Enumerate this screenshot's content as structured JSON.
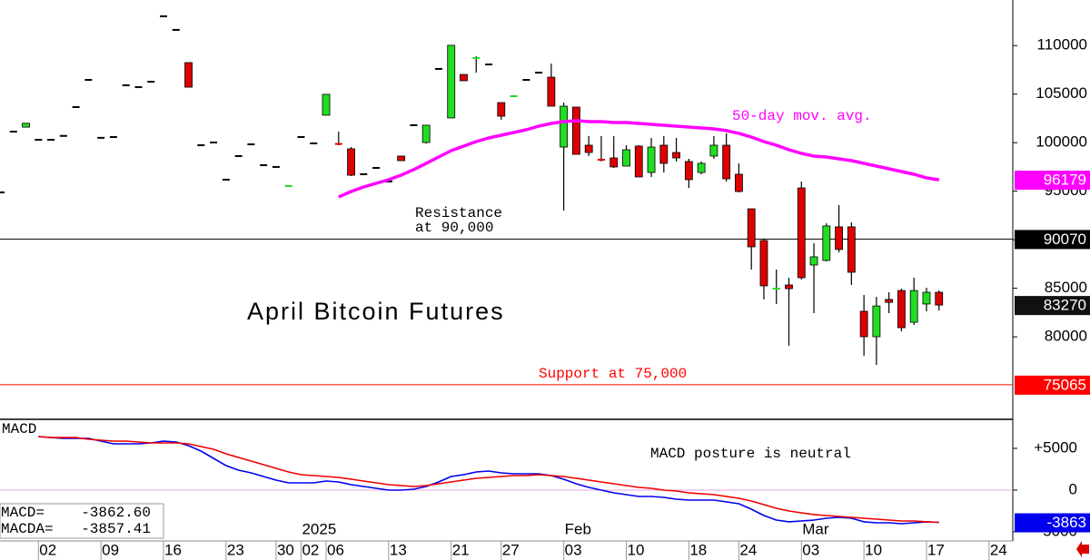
{
  "chart_data": [
    {
      "type": "candlestick",
      "title": "April Bitcoin Futures",
      "categories": [
        null,
        null,
        null,
        "02",
        null,
        null,
        null,
        null,
        "09",
        null,
        null,
        null,
        null,
        "16",
        null,
        null,
        null,
        null,
        "23",
        null,
        null,
        null,
        "30",
        null,
        "02",
        null,
        "06",
        null,
        null,
        null,
        null,
        "13",
        null,
        null,
        null,
        null,
        "21",
        null,
        null,
        null,
        "27",
        null,
        null,
        null,
        null,
        "03",
        null,
        null,
        null,
        null,
        "10",
        null,
        null,
        null,
        null,
        "18",
        null,
        null,
        null,
        "24",
        null,
        null,
        null,
        null,
        "03",
        null,
        null,
        null,
        null,
        "10",
        null,
        null,
        null,
        null,
        "17",
        null,
        null,
        null,
        null,
        "24"
      ],
      "month_labels": [
        null,
        null,
        null,
        null,
        null,
        null,
        null,
        null,
        null,
        null,
        null,
        null,
        null,
        null,
        null,
        null,
        null,
        null,
        null,
        null,
        null,
        null,
        null,
        null,
        "2025",
        null,
        null,
        null,
        null,
        null,
        null,
        null,
        null,
        null,
        null,
        null,
        null,
        null,
        null,
        null,
        null,
        null,
        null,
        null,
        null,
        "Feb",
        null,
        null,
        null,
        null,
        null,
        null,
        null,
        null,
        null,
        null,
        null,
        null,
        null,
        null,
        null,
        null,
        null,
        null,
        "Mar",
        null,
        null,
        null,
        null,
        null,
        null,
        null,
        null,
        null,
        null,
        null,
        null,
        null,
        null,
        null
      ],
      "open": [
        94880,
        101140,
        101600,
        100300,
        100300,
        100700,
        103670,
        106470,
        100500,
        100580,
        105910,
        105720,
        106280,
        113020,
        111620,
        108250,
        99740,
        100020,
        96190,
        98620,
        99830,
        97680,
        97500,
        95480,
        100580,
        99930,
        102830,
        99870,
        99370,
        96750,
        97400,
        96000,
        98620,
        101800,
        100020,
        107600,
        102550,
        107030,
        108680,
        108060,
        104130,
        104750,
        106470,
        107220,
        106750,
        99550,
        103670,
        99740,
        98340,
        98430,
        97590,
        99650,
        96930,
        99740,
        98990,
        98060,
        96930,
        98620,
        99740,
        96750,
        93190,
        89920,
        84920,
        85340,
        95340,
        87400,
        87870,
        91330,
        91330,
        82630,
        80010,
        83850,
        84770,
        81500,
        83380,
        84590,
        null,
        null,
        null,
        null
      ],
      "high": [
        94880,
        101140,
        102000,
        100300,
        100300,
        100700,
        103670,
        106470,
        100500,
        100580,
        105910,
        105720,
        106280,
        113020,
        111620,
        108250,
        99740,
        100020,
        96190,
        98620,
        99830,
        97680,
        97500,
        95530,
        100580,
        99930,
        104980,
        101140,
        99550,
        96750,
        97400,
        96000,
        98620,
        101800,
        101800,
        107600,
        110030,
        107030,
        108900,
        108060,
        104130,
        104790,
        106470,
        107220,
        108150,
        104130,
        103670,
        100680,
        100680,
        100680,
        99740,
        99740,
        100490,
        100680,
        100490,
        98340,
        98060,
        100680,
        100960,
        97870,
        93190,
        90110,
        86930,
        86090,
        96000,
        89640,
        91700,
        93570,
        91790,
        84310,
        84120,
        84590,
        84960,
        86090,
        85060,
        84770,
        null,
        null,
        null,
        null
      ],
      "low": [
        94880,
        101140,
        101600,
        100300,
        100300,
        100700,
        103670,
        106470,
        100500,
        100580,
        105910,
        105720,
        106280,
        113020,
        111620,
        105720,
        99740,
        100020,
        96190,
        98620,
        99830,
        97680,
        97500,
        95480,
        100580,
        99930,
        102830,
        99740,
        96560,
        96750,
        97400,
        96000,
        98150,
        101800,
        99900,
        107600,
        102550,
        106380,
        107220,
        108060,
        102360,
        104750,
        106470,
        107220,
        103760,
        93010,
        98800,
        98620,
        98060,
        97400,
        97590,
        96470,
        96470,
        96930,
        98060,
        95340,
        96750,
        98340,
        96000,
        94880,
        86930,
        83850,
        83380,
        79080,
        85900,
        82440,
        87770,
        88700,
        85340,
        78050,
        77110,
        82440,
        80560,
        81230,
        82630,
        82720,
        null,
        null,
        null,
        null
      ],
      "close": [
        94880,
        101140,
        102000,
        100300,
        100300,
        100700,
        103670,
        106470,
        100500,
        100580,
        105910,
        105720,
        106280,
        113020,
        111620,
        105720,
        99740,
        100020,
        96190,
        98620,
        99830,
        97680,
        97500,
        95530,
        100580,
        99930,
        104980,
        99830,
        96650,
        96750,
        97400,
        96000,
        98150,
        101800,
        101800,
        107600,
        110030,
        106380,
        108720,
        108060,
        102730,
        104790,
        106470,
        107220,
        103760,
        103760,
        98800,
        98990,
        98150,
        97500,
        99270,
        96470,
        99550,
        97870,
        98430,
        96190,
        97870,
        99740,
        96280,
        94970,
        89270,
        85250,
        84960,
        84960,
        86090,
        88240,
        91420,
        89000,
        86650,
        80010,
        83180,
        83550,
        80940,
        84770,
        84590,
        83270,
        null,
        null,
        null,
        null
      ],
      "up_color": "#22dd22",
      "down_color": "#dd0000",
      "flat_color": "#000000",
      "series": [
        {
          "name": "50-day mov. avg.",
          "color": "#ff00ff",
          "values": [
            null,
            null,
            null,
            null,
            null,
            null,
            null,
            null,
            null,
            null,
            null,
            null,
            null,
            null,
            null,
            null,
            null,
            null,
            null,
            null,
            null,
            null,
            null,
            null,
            null,
            null,
            null,
            94410,
            94970,
            95440,
            95810,
            96190,
            96650,
            97220,
            97870,
            98520,
            99180,
            99650,
            100110,
            100490,
            100770,
            101050,
            101330,
            101700,
            101980,
            102170,
            102260,
            102170,
            102170,
            102080,
            102080,
            101980,
            101890,
            101800,
            101700,
            101610,
            101520,
            101420,
            101240,
            100960,
            100580,
            100110,
            99740,
            99270,
            98900,
            98620,
            98520,
            98340,
            98150,
            97870,
            97590,
            97310,
            97030,
            96750,
            96370,
            96179,
            null,
            null,
            null,
            null
          ]
        }
      ],
      "reference_lines": [
        {
          "value": 90070,
          "color": "#000000",
          "label": [
            "Resistance",
            "at 90,000"
          ]
        },
        {
          "value": 75065,
          "color": "#ff0000",
          "label": [
            "Support at 75,000"
          ]
        }
      ],
      "ylim": [
        71500,
        114700
      ],
      "yticks": [
        80000,
        85000,
        90000,
        95000,
        100000,
        105000,
        110000
      ]
    },
    {
      "type": "line",
      "title": "MACD",
      "annotation": "MACD posture is neutral",
      "series": [
        {
          "name": "MACD",
          "color": "#0000ee",
          "values": [
            null,
            null,
            null,
            6410,
            6300,
            6200,
            6200,
            6200,
            5870,
            5540,
            5540,
            5540,
            5650,
            5870,
            5760,
            5330,
            4670,
            3800,
            2930,
            2390,
            2070,
            1630,
            1200,
            870,
            870,
            870,
            1090,
            980,
            650,
            430,
            220,
            0,
            0,
            110,
            430,
            980,
            1630,
            1850,
            2170,
            2280,
            2070,
            1960,
            1960,
            1960,
            1740,
            1300,
            760,
            330,
            0,
            -330,
            -540,
            -760,
            -760,
            -870,
            -1090,
            -1200,
            -1200,
            -1200,
            -1410,
            -1630,
            -2280,
            -3040,
            -3590,
            -3800,
            -3700,
            -3590,
            -3370,
            -3260,
            -3370,
            -3800,
            -3910,
            -3910,
            -4020,
            -3910,
            -3800,
            -3862.6,
            null,
            null,
            null,
            null
          ],
          "value_labels": [
            null,
            null,
            null,
            null,
            null,
            null,
            null,
            null,
            null,
            null,
            null,
            null,
            null,
            null,
            null,
            null,
            null,
            null,
            null,
            null,
            null,
            null,
            null,
            null,
            null,
            null,
            null,
            null,
            null,
            null,
            null,
            null,
            null,
            null,
            null,
            null,
            null,
            null,
            null,
            null,
            null,
            null,
            null,
            null,
            null,
            null,
            null,
            null,
            null,
            null,
            null,
            null,
            null,
            null,
            null,
            null,
            null,
            null,
            null,
            null,
            null,
            null,
            null,
            null,
            null,
            null,
            null,
            null,
            null,
            null,
            null,
            null,
            null,
            null,
            null,
            "-3863",
            null,
            null,
            null,
            null
          ]
        },
        {
          "name": "MACDA",
          "color": "#ee0000",
          "values": [
            null,
            null,
            null,
            6410,
            6300,
            6300,
            6300,
            6090,
            5980,
            5870,
            5870,
            5760,
            5650,
            5650,
            5650,
            5540,
            5220,
            4890,
            4350,
            3910,
            3480,
            3040,
            2610,
            2170,
            1850,
            1740,
            1630,
            1520,
            1300,
            1090,
            870,
            650,
            540,
            430,
            540,
            760,
            980,
            1200,
            1410,
            1520,
            1630,
            1740,
            1740,
            1850,
            1740,
            1630,
            1410,
            1200,
            980,
            760,
            540,
            330,
            220,
            0,
            -110,
            -330,
            -430,
            -540,
            -760,
            -980,
            -1300,
            -1740,
            -2170,
            -2500,
            -2720,
            -2930,
            -3040,
            -3150,
            -3260,
            -3370,
            -3480,
            -3590,
            -3700,
            -3700,
            -3800,
            -3857.41,
            null,
            null,
            null,
            null
          ]
        }
      ],
      "readout": [
        {
          "name": "MACD=",
          "value": "-3862.60"
        },
        {
          "name": "MACDA=",
          "value": "-3857.41"
        }
      ],
      "ylim": [
        -5980,
        8480
      ],
      "yticks": [
        -5000,
        0,
        {
          "value": 5000,
          "label": "+5000"
        }
      ],
      "zero_line": true
    }
  ]
}
